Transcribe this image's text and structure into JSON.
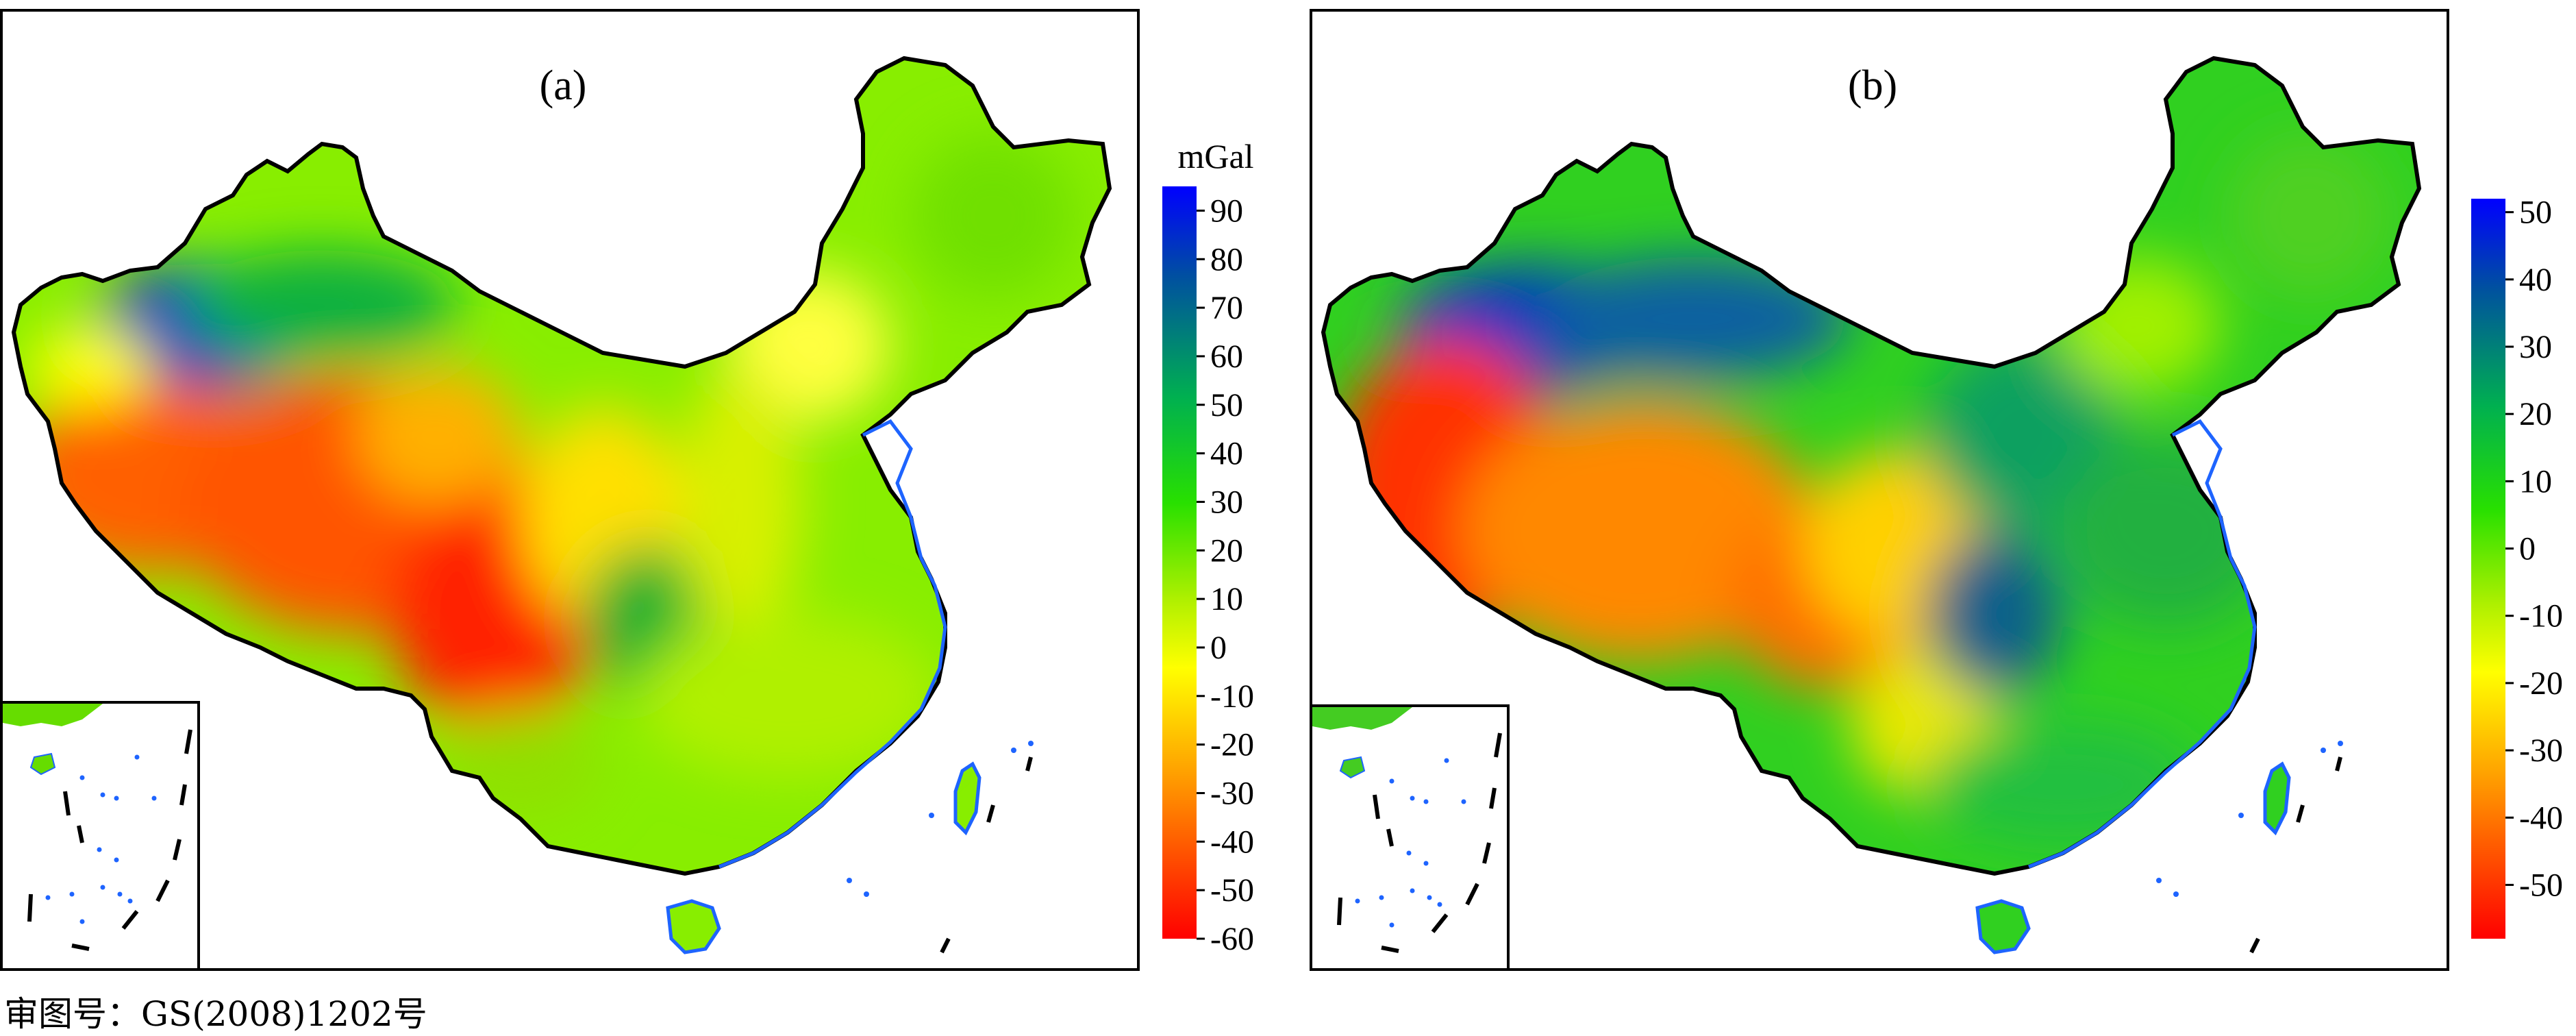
{
  "panels": [
    {
      "label": "(a)",
      "colorbar": {
        "unit": "mGal",
        "ticks": [
          "90",
          "80",
          "70",
          "60",
          "50",
          "40",
          "30",
          "20",
          "10",
          "0",
          "-10",
          "-20",
          "-30",
          "-40",
          "-50",
          "-60"
        ],
        "range": [
          -60,
          95
        ]
      }
    },
    {
      "label": "(b)",
      "colorbar": {
        "unit": "",
        "ticks": [
          "50",
          "40",
          "30",
          "20",
          "10",
          "0",
          "-10",
          "-20",
          "-30",
          "-40",
          "-50"
        ],
        "range": [
          -58,
          52
        ]
      }
    }
  ],
  "colors": {
    "high": "#0000ff",
    "mid_high": "#00cc33",
    "zero": "#ffff00",
    "low": "#ff0000",
    "coastline": "#1e64ff",
    "border": "#000000"
  },
  "caption": "审图号：GS(2008)1202号"
}
